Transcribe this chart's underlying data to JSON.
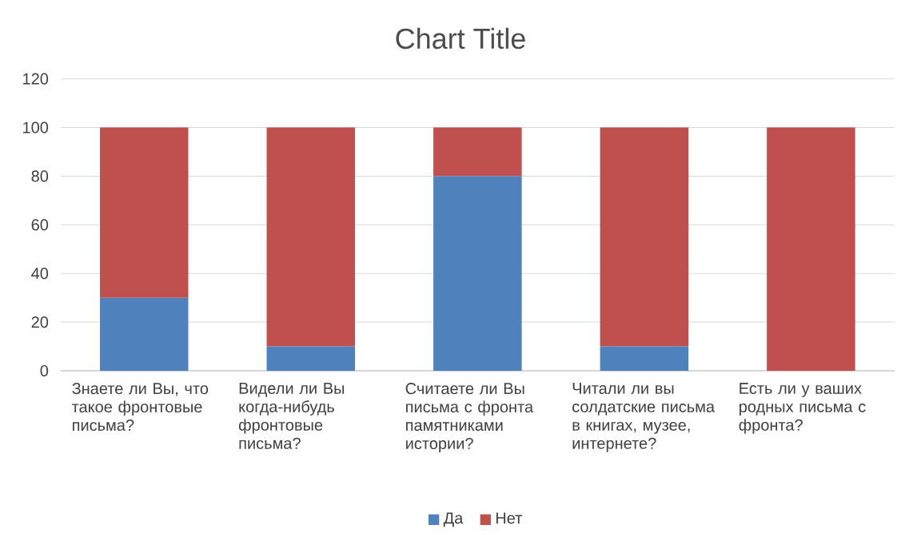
{
  "chart_data": {
    "type": "bar",
    "title": "Chart Title",
    "stacked": true,
    "categories": [
      "Знаете ли Вы, что такое фронтовые письма?",
      "Видели ли Вы когда-нибудь фронтовые письма?",
      "Считаете ли Вы письма с фронта памятниками истории?",
      "Читали ли вы солдатские письма в книгах, музее, интернете?",
      "Есть ли у ваших родных письма с фронта?"
    ],
    "series": [
      {
        "name": "Да",
        "color": "#4f81bd",
        "values": [
          30,
          10,
          80,
          10,
          0
        ]
      },
      {
        "name": "Нет",
        "color": "#c0504d",
        "values": [
          70,
          90,
          20,
          90,
          100
        ]
      }
    ],
    "ylim": [
      0,
      120
    ],
    "yticks": [
      0,
      20,
      40,
      60,
      80,
      100,
      120
    ],
    "grid": "y",
    "legend": "bottom"
  }
}
